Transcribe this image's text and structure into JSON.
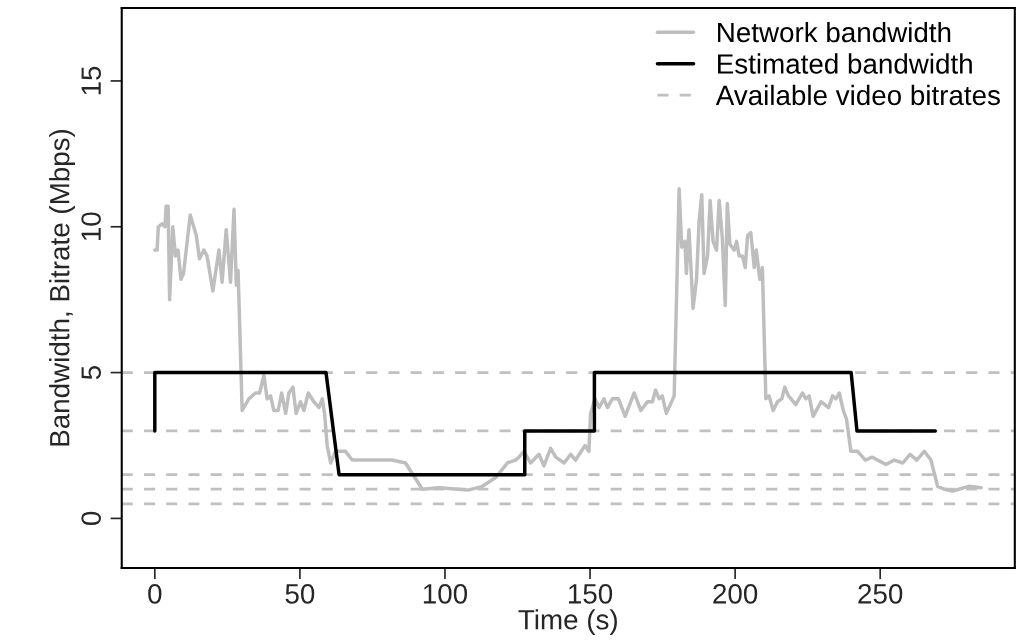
{
  "chart_data": {
    "type": "line",
    "xlabel": "Time (s)",
    "ylabel": "Bandwidth, Bitrate (Mbps)",
    "xlim": [
      -11.4,
      296.4
    ],
    "ylim": [
      -1.7,
      17.5
    ],
    "xticks": [
      0,
      50,
      100,
      150,
      200,
      250
    ],
    "yticks": [
      0,
      5,
      10,
      15
    ],
    "grid": false,
    "legend": "top right",
    "line_style": "solid",
    "marker": "none",
    "series": [
      {
        "name": "Network bandwidth",
        "color": "#bebebe",
        "x": [
          0,
          0.8,
          1.2,
          2.5,
          3.5,
          3.9,
          4.6,
          5.1,
          6.2,
          7.1,
          8.0,
          9.0,
          9.9,
          12.2,
          14.3,
          15.4,
          16.9,
          18.0,
          20.0,
          22.1,
          23.2,
          24.6,
          26.1,
          27.3,
          28.1,
          28.7,
          30.1,
          32.4,
          34.7,
          36.1,
          37.6,
          38.7,
          39.9,
          41.0,
          42.5,
          43.7,
          45.1,
          46.2,
          47.6,
          48.7,
          50.2,
          51.4,
          52.9,
          54.8,
          56.6,
          57.7,
          58.5,
          59.4,
          60.6,
          62.3,
          65.7,
          68.0,
          74.9,
          81.8,
          86.4,
          92.2,
          97.9,
          104.8,
          107.9,
          112.9,
          117.5,
          121.5,
          124.3,
          125.5,
          127.2,
          129.5,
          132.4,
          134.1,
          136.4,
          138.2,
          141.1,
          143.3,
          145.0,
          148.3,
          149.6,
          150.2,
          151.7,
          153.1,
          154.8,
          156.0,
          157.7,
          159.8,
          162.1,
          165.2,
          167.5,
          169.8,
          171.5,
          172.6,
          173.8,
          174.9,
          176.3,
          179.0,
          180.7,
          181.6,
          182.7,
          183.2,
          184.1,
          185.5,
          186.7,
          187.6,
          188.5,
          189.3,
          190.5,
          191.4,
          192.4,
          193.6,
          194.5,
          195.6,
          196.6,
          197.3,
          198.2,
          199.7,
          200.5,
          201.4,
          202.5,
          203.5,
          204.3,
          205.4,
          206.6,
          207.3,
          208.5,
          209.4,
          210.6,
          211.7,
          213.1,
          214.6,
          216.1,
          217.1,
          218.4,
          220.9,
          223.2,
          224.4,
          225.5,
          226.9,
          229.6,
          232.2,
          233.6,
          234.7,
          235.9,
          237.3,
          238.4,
          239.9,
          242.2,
          244.9,
          247.2,
          252.0,
          254.9,
          257.8,
          260.3,
          262.6,
          265.2,
          267.5,
          269.8,
          272.1,
          275.0,
          280.5,
          284.8
        ],
        "values": [
          9.2,
          9.2,
          10.0,
          10.1,
          10.0,
          10.7,
          10.7,
          7.5,
          10.0,
          9.0,
          9.2,
          8.2,
          8.4,
          10.4,
          9.7,
          8.9,
          9.2,
          9.0,
          7.8,
          9.2,
          8.1,
          9.9,
          8.1,
          10.6,
          8.0,
          8.5,
          3.7,
          4.1,
          4.3,
          4.3,
          4.9,
          4.1,
          4.2,
          3.7,
          3.7,
          4.3,
          3.6,
          4.3,
          4.5,
          3.6,
          4.0,
          3.7,
          4.3,
          4.0,
          3.8,
          4.1,
          3.6,
          2.5,
          1.9,
          2.3,
          2.3,
          2.0,
          2.0,
          2.0,
          1.9,
          1.0,
          1.05,
          1.0,
          0.97,
          1.1,
          1.4,
          1.9,
          2.0,
          2.1,
          2.3,
          1.9,
          2.2,
          1.8,
          2.4,
          2.1,
          1.9,
          2.2,
          2.0,
          2.5,
          2.3,
          3.6,
          4.1,
          3.8,
          4.1,
          3.8,
          4.1,
          4.1,
          3.5,
          4.3,
          3.7,
          4.0,
          4.0,
          4.4,
          4.1,
          4.2,
          3.6,
          4.2,
          11.3,
          9.3,
          9.5,
          8.4,
          9.9,
          7.2,
          8.2,
          10.2,
          11.1,
          8.4,
          9.0,
          10.9,
          9.5,
          9.2,
          10.9,
          9.6,
          7.3,
          10.8,
          9.4,
          9.2,
          9.5,
          9.0,
          9.0,
          8.6,
          9.7,
          9.8,
          8.6,
          9.2,
          8.2,
          8.6,
          4.1,
          4.2,
          3.7,
          4.0,
          4.1,
          4.5,
          4.2,
          3.9,
          4.3,
          4.1,
          4.2,
          3.5,
          4.0,
          3.8,
          4.2,
          4.1,
          4.3,
          3.7,
          3.4,
          2.3,
          2.3,
          2.0,
          2.1,
          1.85,
          2.0,
          1.9,
          2.2,
          2.0,
          2.3,
          2.0,
          1.1,
          1.0,
          0.94,
          1.1,
          1.05
        ]
      },
      {
        "name": "Estimated bandwidth",
        "color": "#000000",
        "x": [
          0,
          0,
          59,
          63.5,
          127.5,
          127.5,
          151.5,
          151.5,
          240,
          242,
          269
        ],
        "values": [
          3,
          5,
          5,
          1.5,
          1.5,
          3,
          3,
          5,
          5,
          3,
          3
        ]
      }
    ],
    "ref_lines": [
      {
        "axis": "y",
        "value": 5,
        "label": "Available video bitrates",
        "color": "#c0c0c0",
        "line_style": "dashed"
      },
      {
        "axis": "y",
        "value": 3,
        "color": "#c0c0c0",
        "line_style": "dashed"
      },
      {
        "axis": "y",
        "value": 1.5,
        "color": "#c0c0c0",
        "line_style": "dashed"
      },
      {
        "axis": "y",
        "value": 1,
        "color": "#c0c0c0",
        "line_style": "dashed"
      },
      {
        "axis": "y",
        "value": 0.5,
        "color": "#c0c0c0",
        "line_style": "dashed"
      }
    ]
  }
}
